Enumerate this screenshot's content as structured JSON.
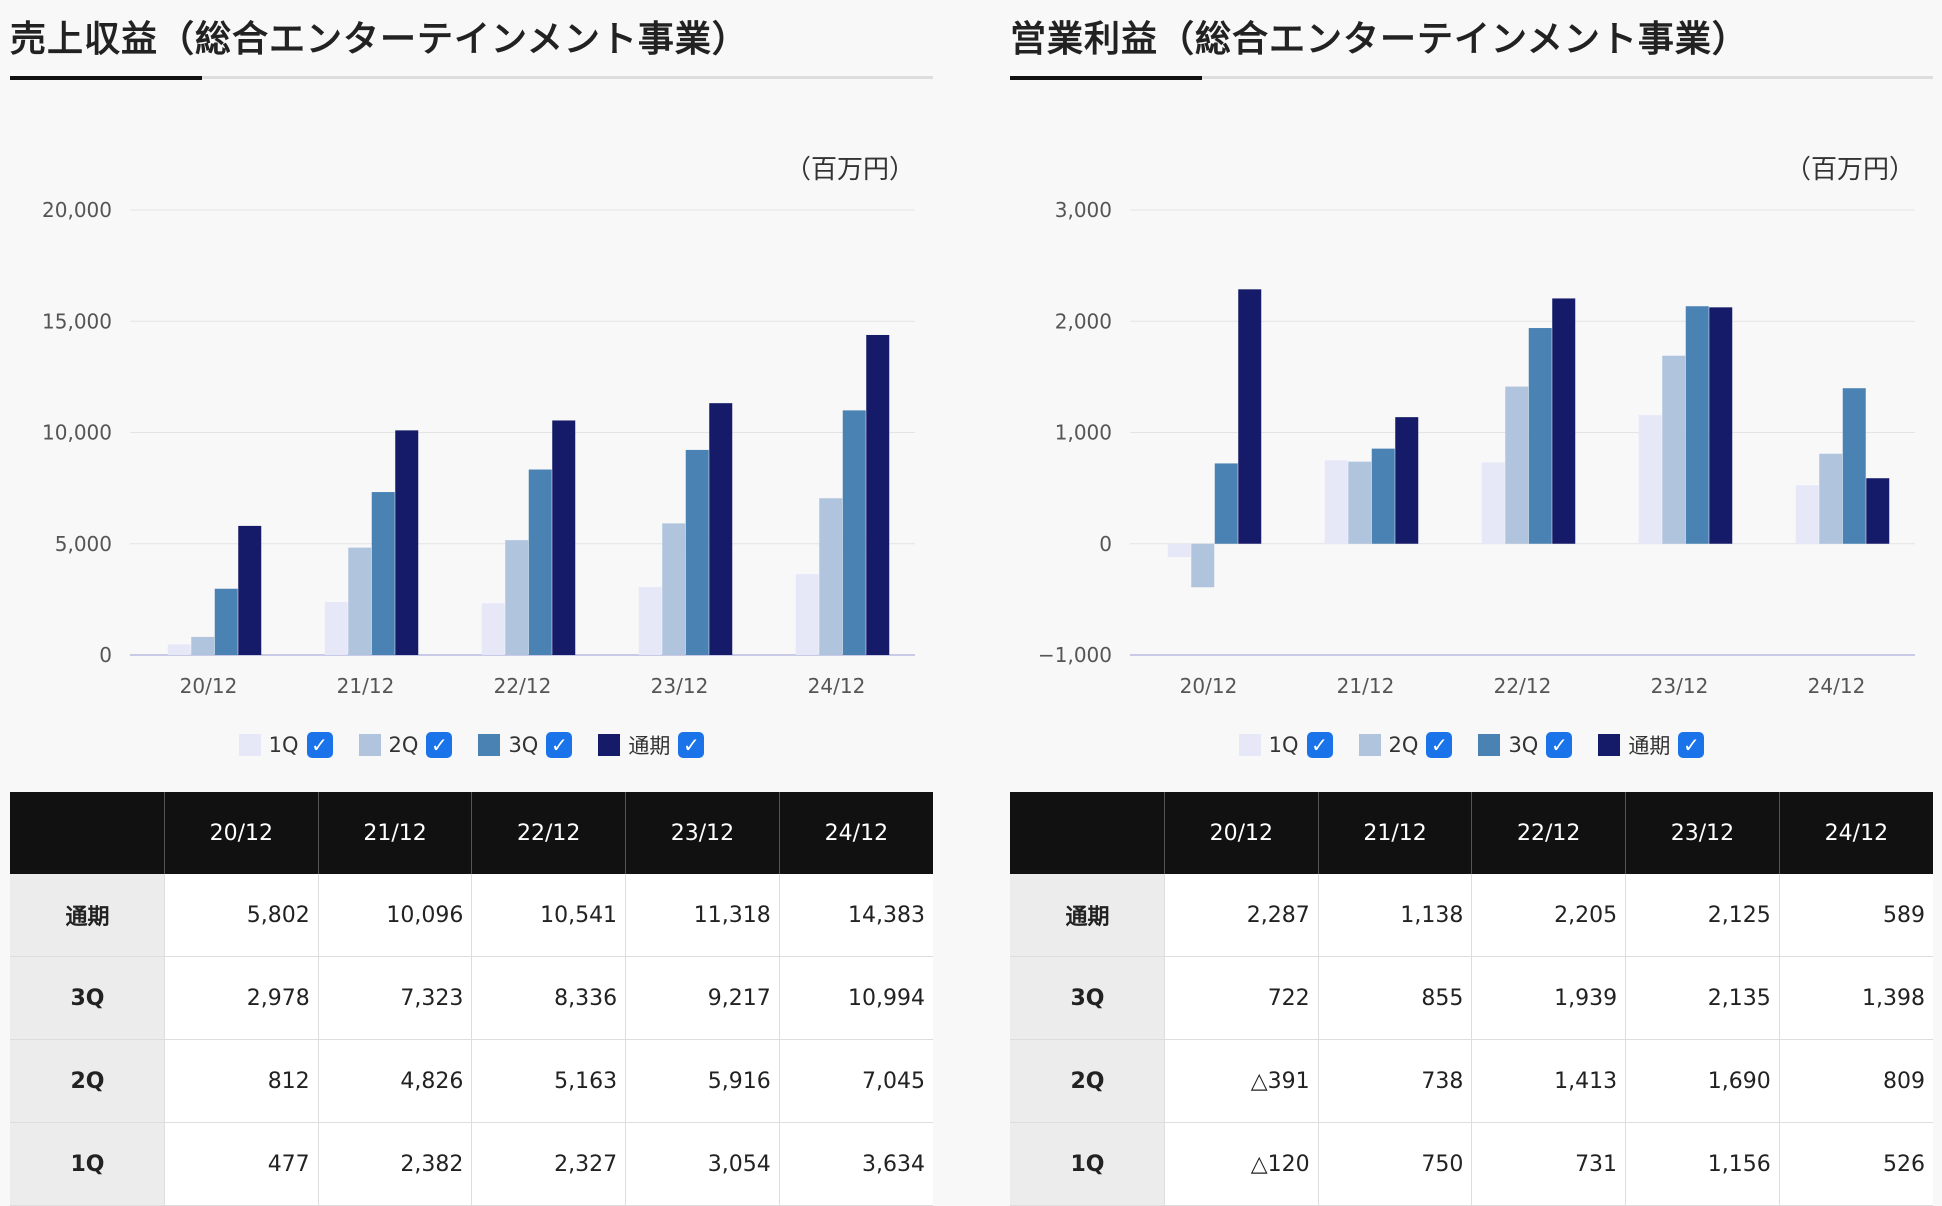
{
  "unit_label": "（百万円）",
  "legend": {
    "items": [
      {
        "label": "1Q",
        "color": "#e6e8f8"
      },
      {
        "label": "2Q",
        "color": "#b0c4de"
      },
      {
        "label": "3Q",
        "color": "#4a82b4"
      },
      {
        "label": "通期",
        "color": "#161b69"
      }
    ],
    "check_glyph": "✓"
  },
  "table_header": [
    "",
    "20/12",
    "21/12",
    "22/12",
    "23/12",
    "24/12"
  ],
  "panels": [
    {
      "title": "売上収益（総合エンターテインメント事業）",
      "table_rows": [
        {
          "label": "通期",
          "cells": [
            "5,802",
            "10,096",
            "10,541",
            "11,318",
            "14,383"
          ]
        },
        {
          "label": "3Q",
          "cells": [
            "2,978",
            "7,323",
            "8,336",
            "9,217",
            "10,994"
          ]
        },
        {
          "label": "2Q",
          "cells": [
            "812",
            "4,826",
            "5,163",
            "5,916",
            "7,045"
          ]
        },
        {
          "label": "1Q",
          "cells": [
            "477",
            "2,382",
            "2,327",
            "3,054",
            "3,634"
          ]
        }
      ]
    },
    {
      "title": "営業利益（総合エンターテインメント事業）",
      "table_rows": [
        {
          "label": "通期",
          "cells": [
            "2,287",
            "1,138",
            "2,205",
            "2,125",
            "589"
          ]
        },
        {
          "label": "3Q",
          "cells": [
            "722",
            "855",
            "1,939",
            "2,135",
            "1,398"
          ]
        },
        {
          "label": "2Q",
          "cells": [
            "△391",
            "738",
            "1,413",
            "1,690",
            "809"
          ]
        },
        {
          "label": "1Q",
          "cells": [
            "△120",
            "750",
            "731",
            "1,156",
            "526"
          ]
        }
      ]
    }
  ],
  "chart_data": [
    {
      "type": "bar",
      "title": "売上収益（総合エンターテインメント事業）",
      "ylabel": "（百万円）",
      "categories": [
        "20/12",
        "21/12",
        "22/12",
        "23/12",
        "24/12"
      ],
      "yticks": [
        0,
        5000,
        10000,
        15000,
        20000
      ],
      "ytick_labels": [
        "0",
        "5,000",
        "10,000",
        "15,000",
        "20,000"
      ],
      "ylim": [
        0,
        20000
      ],
      "grid": true,
      "legend_position": "bottom-center",
      "series": [
        {
          "name": "1Q",
          "values": [
            477,
            2382,
            2327,
            3054,
            3634
          ]
        },
        {
          "name": "2Q",
          "values": [
            812,
            4826,
            5163,
            5916,
            7045
          ]
        },
        {
          "name": "3Q",
          "values": [
            2978,
            7323,
            8336,
            9217,
            10994
          ]
        },
        {
          "name": "通期",
          "values": [
            5802,
            10096,
            10541,
            11318,
            14383
          ]
        }
      ]
    },
    {
      "type": "bar",
      "title": "営業利益（総合エンターテインメント事業）",
      "ylabel": "（百万円）",
      "categories": [
        "20/12",
        "21/12",
        "22/12",
        "23/12",
        "24/12"
      ],
      "yticks": [
        -1000,
        0,
        1000,
        2000,
        3000
      ],
      "ytick_labels": [
        "−1,000",
        "0",
        "1,000",
        "2,000",
        "3,000"
      ],
      "ylim": [
        -1000,
        3000
      ],
      "grid": true,
      "legend_position": "bottom-center",
      "series": [
        {
          "name": "1Q",
          "values": [
            -120,
            750,
            731,
            1156,
            526
          ]
        },
        {
          "name": "2Q",
          "values": [
            -391,
            738,
            1413,
            1690,
            809
          ]
        },
        {
          "name": "3Q",
          "values": [
            722,
            855,
            1939,
            2135,
            1398
          ]
        },
        {
          "name": "通期",
          "values": [
            2287,
            1138,
            2205,
            2125,
            589
          ]
        }
      ]
    }
  ]
}
